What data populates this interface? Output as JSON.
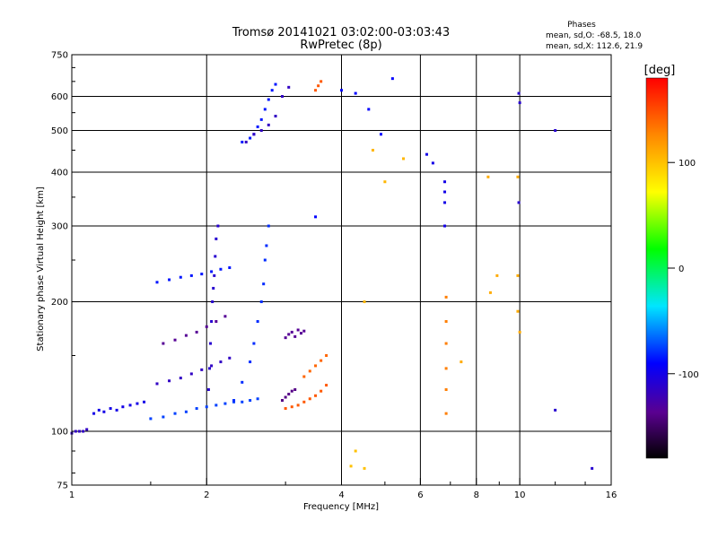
{
  "chart_data": {
    "type": "scatter",
    "title": "Tromsø 20141021 03:02:00-03:03:43",
    "subtitle": "RwPretec (8p)",
    "xlabel": "Frequency [MHz]",
    "ylabel": "Stationary phase Virtual Height [km]",
    "x_scale": "log",
    "y_scale": "log",
    "xlim": [
      1,
      16
    ],
    "ylim": [
      75,
      750
    ],
    "x_ticks": [
      1,
      2,
      4,
      6,
      8,
      10,
      16
    ],
    "x_tick_labels": [
      "1",
      "2",
      "4",
      "6",
      "8",
      "10",
      "16"
    ],
    "x_minor_ticks": [
      1.5,
      3,
      5,
      7,
      9,
      12,
      14
    ],
    "y_ticks": [
      75,
      100,
      200,
      300,
      400,
      500,
      600,
      750
    ],
    "y_tick_labels": [
      "75",
      "100",
      "200",
      "300",
      "400",
      "500",
      "600",
      "750"
    ],
    "y_minor_ticks": [
      80,
      90,
      150,
      250,
      350,
      450,
      550,
      650,
      700
    ],
    "grid": true,
    "phase_stats": {
      "heading": "Phases",
      "o_line": "mean, sd,O: -68.5, 18.0",
      "x_line": "mean, sd,X: 112.6, 21.9"
    },
    "colorbar": {
      "label": "[deg]",
      "range": [
        -180,
        180
      ],
      "ticks": [
        100,
        0,
        -100
      ],
      "tick_labels": [
        "100",
        "0",
        "-100"
      ]
    },
    "point_groups": [
      {
        "x": [
          1.0,
          1.02,
          1.04,
          1.06,
          1.08
        ],
        "y": [
          99,
          100,
          100,
          100,
          101
        ],
        "phase": -115
      },
      {
        "x": [
          1.12,
          1.15,
          1.18,
          1.22,
          1.26,
          1.3,
          1.35,
          1.4,
          1.45
        ],
        "y": [
          110,
          112,
          111,
          113,
          112,
          114,
          115,
          116,
          117
        ],
        "phase": -100
      },
      {
        "x": [
          1.5,
          1.6,
          1.7,
          1.8,
          1.9,
          2.0,
          2.1,
          2.2,
          2.3,
          2.4,
          2.5,
          2.6
        ],
        "y": [
          107,
          108,
          110,
          111,
          113,
          114,
          115,
          116,
          117,
          117,
          118,
          119
        ],
        "phase": -75
      },
      {
        "x": [
          1.55,
          1.65,
          1.75,
          1.85,
          1.95,
          2.05,
          2.15,
          2.25
        ],
        "y": [
          129,
          131,
          133,
          136,
          139,
          142,
          145,
          148
        ],
        "phase": -115
      },
      {
        "x": [
          1.6,
          1.7,
          1.8,
          1.9,
          2.0,
          2.1,
          2.2
        ],
        "y": [
          160,
          163,
          167,
          170,
          175,
          180,
          185
        ],
        "phase": -135
      },
      {
        "x": [
          1.55,
          1.65,
          1.75,
          1.85,
          1.95,
          2.05,
          2.15,
          2.25
        ],
        "y": [
          222,
          225,
          228,
          230,
          232,
          235,
          238,
          240
        ],
        "phase": -85
      },
      {
        "x": [
          2.02,
          2.03,
          2.04,
          2.05,
          2.06,
          2.07,
          2.08,
          2.09,
          2.1,
          2.12
        ],
        "y": [
          125,
          140,
          160,
          180,
          200,
          215,
          230,
          255,
          280,
          300
        ],
        "phase": -110
      },
      {
        "x": [
          2.3,
          2.4,
          2.5,
          2.55,
          2.6,
          2.65,
          2.68,
          2.7,
          2.72,
          2.75
        ],
        "y": [
          118,
          130,
          145,
          160,
          180,
          200,
          220,
          250,
          270,
          300
        ],
        "phase": -80
      },
      {
        "x": [
          2.4,
          2.5,
          2.55,
          2.6,
          2.65,
          2.7,
          2.75,
          2.8,
          2.85
        ],
        "y": [
          470,
          480,
          490,
          510,
          530,
          560,
          590,
          620,
          640
        ],
        "phase": -85
      },
      {
        "x": [
          2.45,
          2.55,
          2.65,
          2.75,
          2.85,
          2.95,
          3.05
        ],
        "y": [
          470,
          490,
          500,
          515,
          540,
          600,
          630
        ],
        "phase": -115
      },
      {
        "x": [
          3.0,
          3.05,
          3.1,
          3.15,
          3.2,
          3.25,
          3.3
        ],
        "y": [
          165,
          168,
          170,
          166,
          172,
          169,
          171
        ],
        "phase": -135
      },
      {
        "x": [
          2.95,
          3.0,
          3.05,
          3.1,
          3.15
        ],
        "y": [
          118,
          120,
          122,
          124,
          125
        ],
        "phase": -140
      },
      {
        "x": [
          3.0,
          3.1,
          3.2,
          3.3,
          3.4,
          3.5,
          3.6,
          3.7
        ],
        "y": [
          113,
          114,
          115,
          117,
          119,
          121,
          124,
          128
        ],
        "phase": 145
      },
      {
        "x": [
          3.3,
          3.4,
          3.5,
          3.6,
          3.7
        ],
        "y": [
          134,
          138,
          142,
          146,
          150
        ],
        "phase": 140
      },
      {
        "x": [
          3.5,
          3.55,
          3.6
        ],
        "y": [
          620,
          635,
          650
        ],
        "phase": 145
      },
      {
        "x": [
          4.2,
          4.3,
          4.5
        ],
        "y": [
          83,
          90,
          82
        ],
        "phase": 100
      },
      {
        "x": [
          4.5,
          4.7,
          5.0,
          5.5
        ],
        "y": [
          200,
          450,
          380,
          430
        ],
        "phase": 105
      },
      {
        "x": [
          6.2,
          6.4,
          6.8,
          6.8,
          6.8,
          6.8
        ],
        "y": [
          440,
          420,
          380,
          360,
          340,
          300
        ],
        "phase": -100
      },
      {
        "x": [
          6.85,
          6.85,
          6.85,
          6.85,
          6.85,
          6.85
        ],
        "y": [
          205,
          180,
          160,
          140,
          125,
          110
        ],
        "phase": 130
      },
      {
        "x": [
          7.4,
          8.5,
          8.6,
          8.9,
          9.9,
          9.9,
          9.9,
          10.0
        ],
        "y": [
          145,
          390,
          210,
          230,
          390,
          230,
          190,
          170
        ],
        "phase": 110
      },
      {
        "x": [
          9.95,
          9.95,
          10.0,
          12.0,
          12.0,
          14.5
        ],
        "y": [
          340,
          610,
          580,
          500,
          112,
          82
        ],
        "phase": -110
      },
      {
        "x": [
          3.5,
          4.0,
          4.3,
          4.6,
          4.9,
          5.2
        ],
        "y": [
          315,
          620,
          610,
          560,
          490,
          660
        ],
        "phase": -90
      }
    ]
  }
}
